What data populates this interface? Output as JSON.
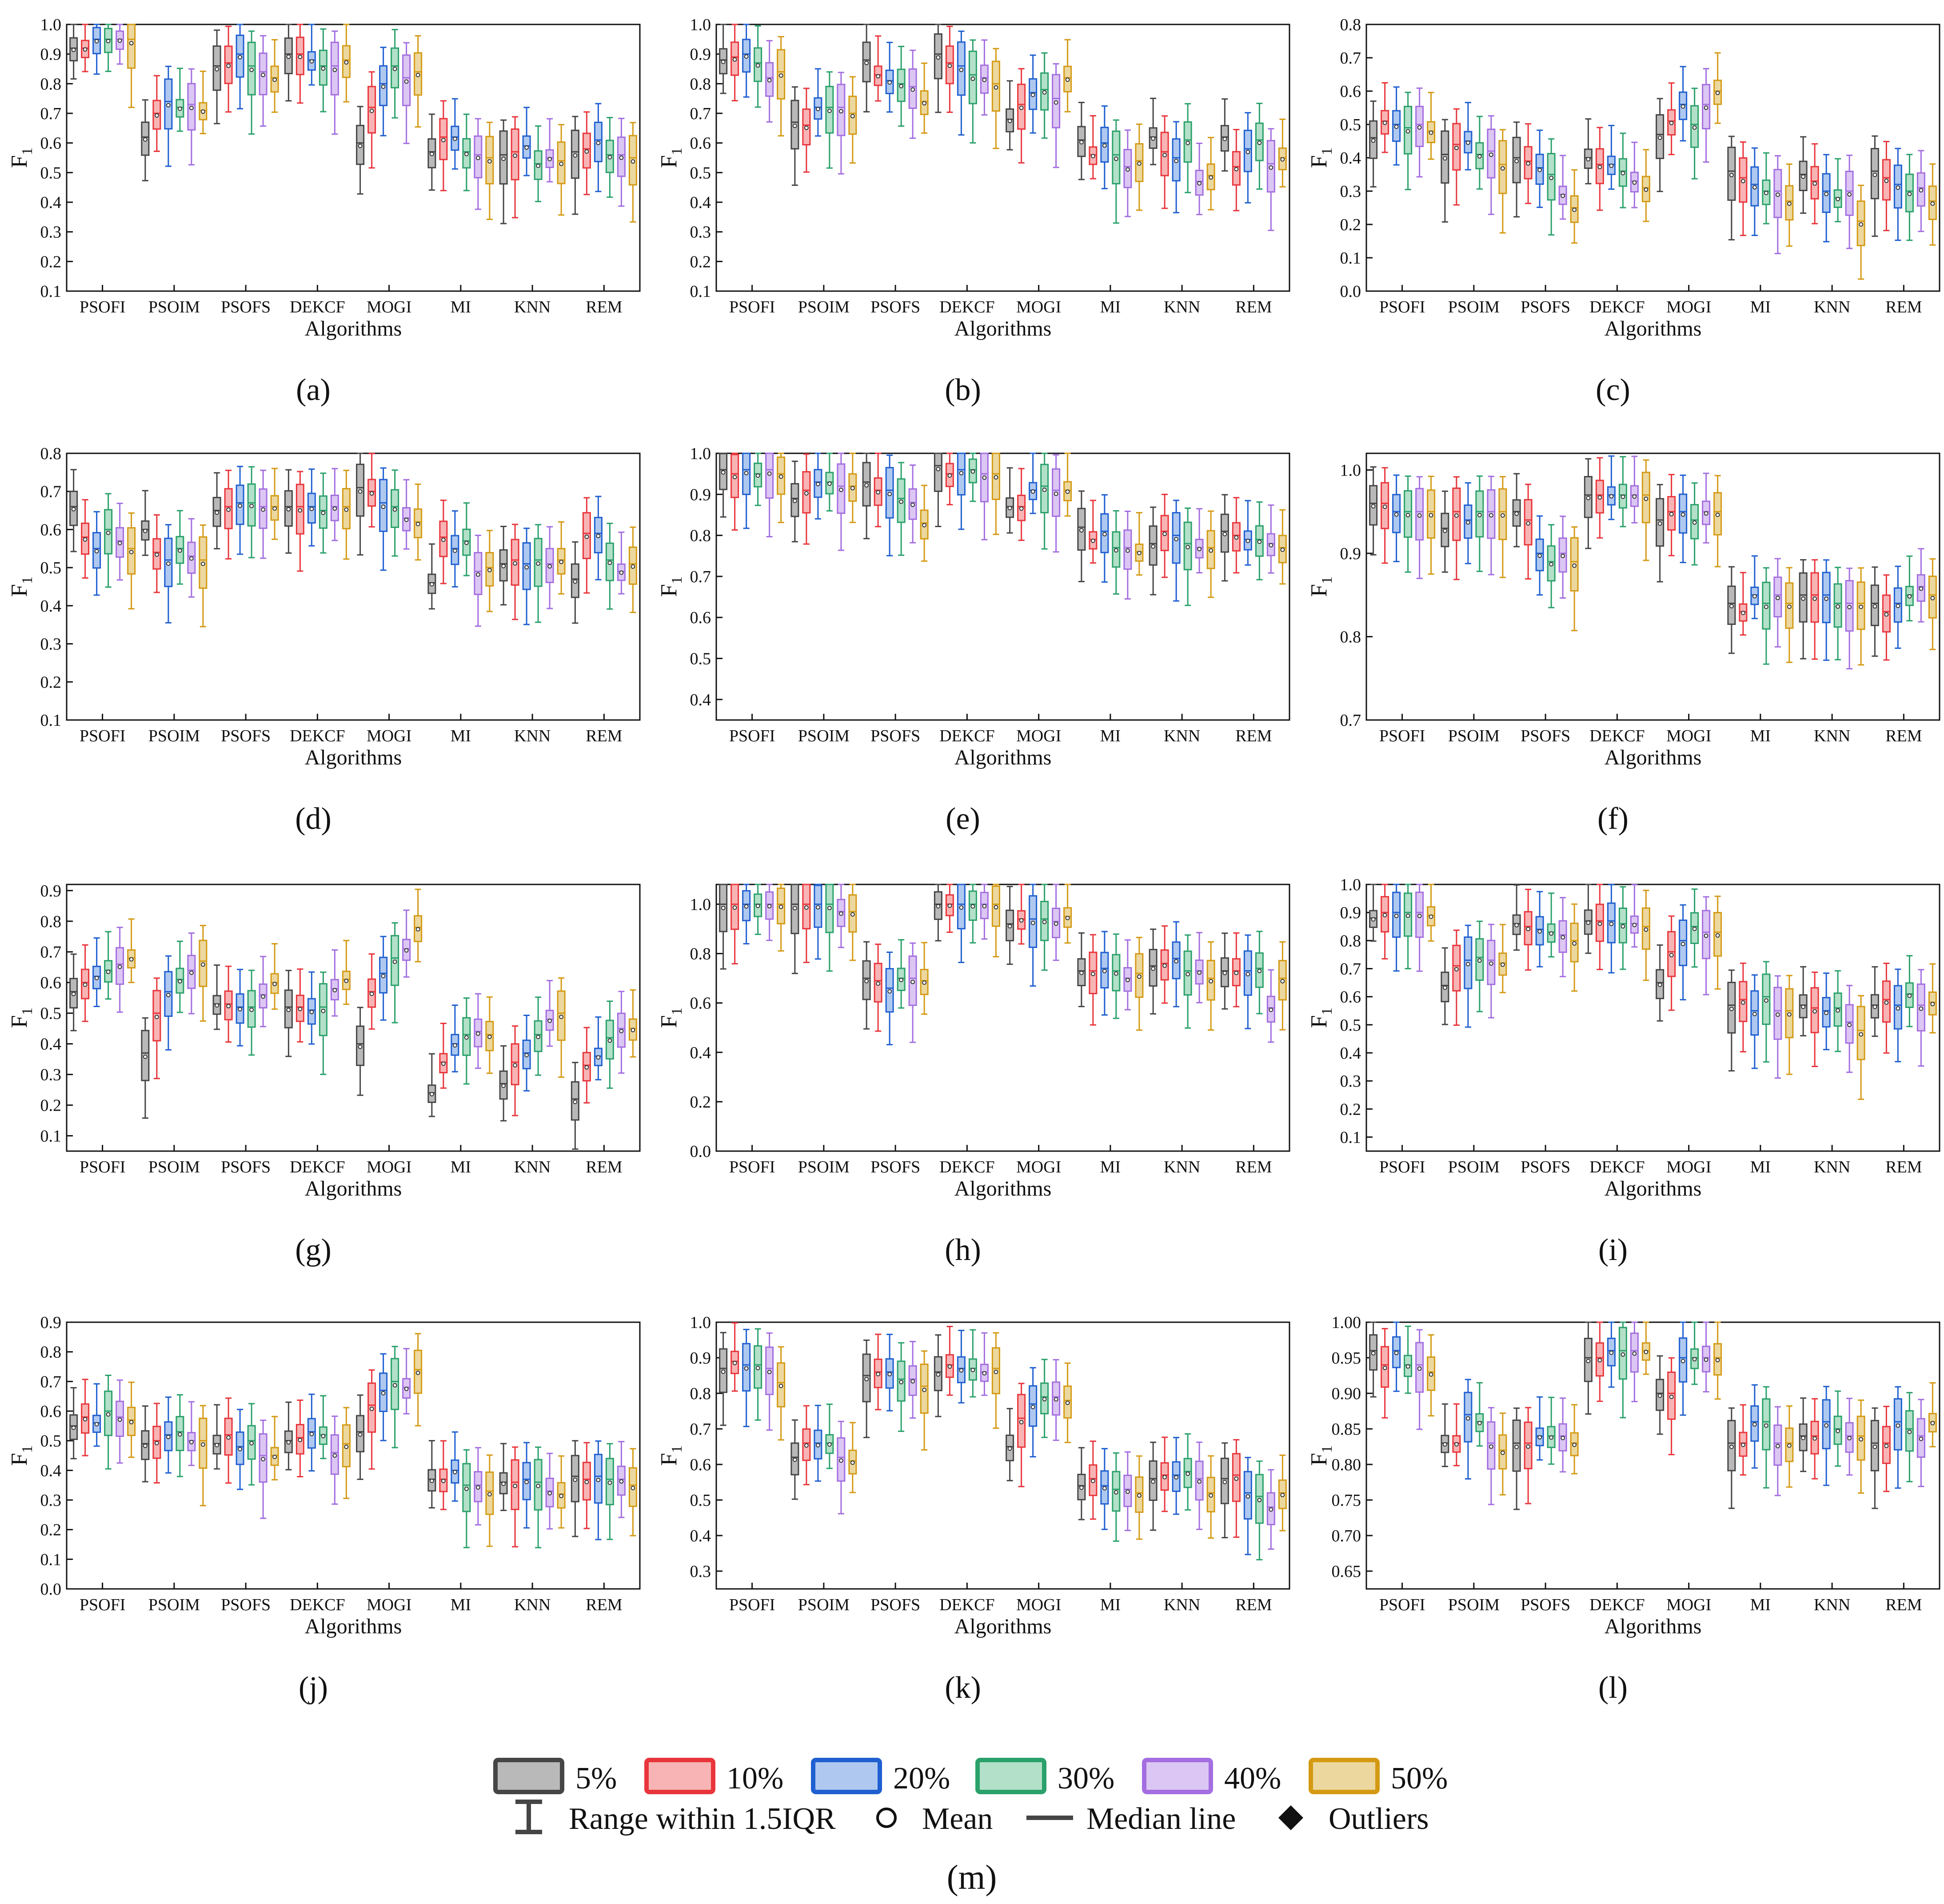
{
  "figure": {
    "ylabel_main": "F",
    "ylabel_sub": "1",
    "xlabel": "Algorithms"
  },
  "colors": {
    "stroke": [
      "#454545",
      "#e8353b",
      "#1f5fd0",
      "#2aa16a",
      "#a36ee0",
      "#d49a14"
    ],
    "fill": [
      "#b9b9b9",
      "#f8b4b4",
      "#aec8f0",
      "#b3e0c8",
      "#dcc6f3",
      "#ecd89e"
    ]
  },
  "legend": {
    "series": [
      "5%",
      "10%",
      "20%",
      "30%",
      "40%",
      "50%"
    ],
    "range_label": "Range within 1.5IQR",
    "mean_label": "Mean",
    "median_label": "Median line",
    "outliers_label": "Outliers",
    "panel_label": "(m)"
  },
  "chart_data": [
    {
      "panel": "(a)",
      "type": "box",
      "ylim": [
        0.1,
        1.0
      ],
      "yticks": [
        "0.1",
        "0.2",
        "0.3",
        "0.4",
        "0.5",
        "0.6",
        "0.7",
        "0.8",
        "0.9",
        "1.0"
      ],
      "categories": [
        "PSOFI",
        "PSOIM",
        "PSOFS",
        "DEKCF",
        "MOGI",
        "MI",
        "KNN",
        "REM"
      ],
      "medians": [
        [
          0.92,
          0.92,
          0.95,
          0.95,
          0.95,
          0.95
        ],
        [
          0.62,
          0.7,
          0.74,
          0.72,
          0.73,
          0.71
        ],
        [
          0.86,
          0.87,
          0.9,
          0.86,
          0.84,
          0.82
        ],
        [
          0.9,
          0.9,
          0.88,
          0.86,
          0.86,
          0.88
        ],
        [
          0.6,
          0.72,
          0.8,
          0.86,
          0.82,
          0.84
        ],
        [
          0.57,
          0.62,
          0.62,
          0.57,
          0.56,
          0.55
        ],
        [
          0.56,
          0.57,
          0.59,
          0.53,
          0.55,
          0.54
        ],
        [
          0.57,
          0.58,
          0.61,
          0.56,
          0.56,
          0.55
        ]
      ]
    },
    {
      "panel": "(b)",
      "type": "box",
      "ylim": [
        0.1,
        1.0
      ],
      "yticks": [
        "0.1",
        "0.2",
        "0.3",
        "0.4",
        "0.5",
        "0.6",
        "0.7",
        "0.8",
        "0.9",
        "1.0"
      ],
      "categories": [
        "PSOFI",
        "PSOIM",
        "PSOFS",
        "DEKCF",
        "MOGI",
        "MI",
        "KNN",
        "REM"
      ],
      "medians": [
        [
          0.88,
          0.89,
          0.9,
          0.87,
          0.82,
          0.84
        ],
        [
          0.67,
          0.66,
          0.72,
          0.72,
          0.72,
          0.7
        ],
        [
          0.88,
          0.83,
          0.81,
          0.8,
          0.79,
          0.74
        ],
        [
          0.9,
          0.87,
          0.86,
          0.83,
          0.82,
          0.8
        ],
        [
          0.68,
          0.73,
          0.77,
          0.78,
          0.75,
          0.82
        ],
        [
          0.61,
          0.56,
          0.6,
          0.56,
          0.52,
          0.54
        ],
        [
          0.62,
          0.57,
          0.55,
          0.61,
          0.47,
          0.49
        ],
        [
          0.62,
          0.52,
          0.58,
          0.61,
          0.53,
          0.55
        ]
      ]
    },
    {
      "panel": "(c)",
      "type": "box",
      "ylim": [
        0.0,
        0.8
      ],
      "yticks": [
        "0.0",
        "0.1",
        "0.2",
        "0.3",
        "0.4",
        "0.5",
        "0.6",
        "0.7",
        "0.8"
      ],
      "categories": [
        "PSOFI",
        "PSOIM",
        "PSOFS",
        "DEKCF",
        "MOGI",
        "MI",
        "KNN",
        "REM"
      ],
      "medians": [
        [
          0.46,
          0.51,
          0.5,
          0.49,
          0.5,
          0.48
        ],
        [
          0.41,
          0.44,
          0.45,
          0.41,
          0.42,
          0.38
        ],
        [
          0.4,
          0.39,
          0.37,
          0.35,
          0.29,
          0.25
        ],
        [
          0.4,
          0.38,
          0.38,
          0.36,
          0.33,
          0.31
        ],
        [
          0.47,
          0.51,
          0.56,
          0.5,
          0.56,
          0.6
        ],
        [
          0.36,
          0.34,
          0.32,
          0.3,
          0.3,
          0.27
        ],
        [
          0.35,
          0.33,
          0.3,
          0.28,
          0.3,
          0.21
        ],
        [
          0.36,
          0.34,
          0.32,
          0.3,
          0.31,
          0.27
        ]
      ]
    },
    {
      "panel": "(d)",
      "type": "box",
      "ylim": [
        0.1,
        0.8
      ],
      "yticks": [
        "0.1",
        "0.2",
        "0.3",
        "0.4",
        "0.5",
        "0.6",
        "0.7",
        "0.8"
      ],
      "categories": [
        "PSOFI",
        "PSOIM",
        "PSOFS",
        "DEKCF",
        "MOGI",
        "MI",
        "KNN",
        "REM"
      ],
      "medians": [
        [
          0.66,
          0.58,
          0.55,
          0.6,
          0.57,
          0.55
        ],
        [
          0.6,
          0.54,
          0.52,
          0.55,
          0.53,
          0.52
        ],
        [
          0.65,
          0.66,
          0.67,
          0.67,
          0.66,
          0.66
        ],
        [
          0.66,
          0.66,
          0.66,
          0.65,
          0.66,
          0.66
        ],
        [
          0.71,
          0.7,
          0.67,
          0.66,
          0.63,
          0.62
        ],
        [
          0.46,
          0.58,
          0.55,
          0.57,
          0.49,
          0.5
        ],
        [
          0.51,
          0.52,
          0.51,
          0.52,
          0.51,
          0.52
        ],
        [
          0.47,
          0.59,
          0.59,
          0.52,
          0.49,
          0.51
        ]
      ]
    },
    {
      "panel": "(e)",
      "type": "box",
      "ylim": [
        0.35,
        1.0
      ],
      "yticks": [
        "0.4",
        "0.5",
        "0.6",
        "0.7",
        "0.8",
        "0.9",
        "1.0"
      ],
      "categories": [
        "PSOFI",
        "PSOIM",
        "PSOFS",
        "DEKCF",
        "MOGI",
        "MI",
        "KNN",
        "REM"
      ],
      "medians": [
        [
          0.96,
          0.95,
          0.96,
          0.95,
          0.96,
          0.95
        ],
        [
          0.89,
          0.91,
          0.93,
          0.93,
          0.92,
          0.92
        ],
        [
          0.93,
          0.91,
          0.91,
          0.89,
          0.88,
          0.83
        ],
        [
          0.97,
          0.95,
          0.96,
          0.96,
          0.95,
          0.95
        ],
        [
          0.87,
          0.87,
          0.91,
          0.92,
          0.91,
          0.91
        ],
        [
          0.82,
          0.79,
          0.81,
          0.77,
          0.77,
          0.76
        ],
        [
          0.78,
          0.81,
          0.8,
          0.78,
          0.77,
          0.77
        ],
        [
          0.81,
          0.8,
          0.79,
          0.79,
          0.78,
          0.77
        ]
      ]
    },
    {
      "panel": "(f)",
      "type": "box",
      "ylim": [
        0.7,
        1.02
      ],
      "yticks": [
        "0.7",
        "0.8",
        "0.9",
        "1.0"
      ],
      "categories": [
        "PSOFI",
        "PSOIM",
        "PSOFS",
        "DEKCF",
        "MOGI",
        "MI",
        "KNN",
        "REM"
      ],
      "medians": [
        [
          0.96,
          0.96,
          0.95,
          0.95,
          0.95,
          0.95
        ],
        [
          0.93,
          0.95,
          0.94,
          0.95,
          0.95,
          0.95
        ],
        [
          0.95,
          0.94,
          0.9,
          0.89,
          0.9,
          0.89
        ],
        [
          0.97,
          0.97,
          0.97,
          0.97,
          0.97,
          0.97
        ],
        [
          0.94,
          0.95,
          0.95,
          0.94,
          0.95,
          0.95
        ],
        [
          0.84,
          0.83,
          0.85,
          0.84,
          0.85,
          0.84
        ],
        [
          0.85,
          0.85,
          0.85,
          0.84,
          0.84,
          0.84
        ],
        [
          0.84,
          0.83,
          0.84,
          0.85,
          0.86,
          0.85
        ]
      ]
    },
    {
      "panel": "(g)",
      "type": "box",
      "ylim": [
        0.05,
        0.92
      ],
      "yticks": [
        "0.1",
        "0.2",
        "0.3",
        "0.4",
        "0.5",
        "0.6",
        "0.7",
        "0.8",
        "0.9"
      ],
      "categories": [
        "PSOFI",
        "PSOIM",
        "PSOFS",
        "DEKCF",
        "MOGI",
        "MI",
        "KNN",
        "REM"
      ],
      "medians": [
        [
          0.57,
          0.6,
          0.62,
          0.64,
          0.66,
          0.68
        ],
        [
          0.37,
          0.5,
          0.57,
          0.61,
          0.64,
          0.67
        ],
        [
          0.53,
          0.53,
          0.52,
          0.52,
          0.56,
          0.6
        ],
        [
          0.52,
          0.52,
          0.51,
          0.52,
          0.58,
          0.61
        ],
        [
          0.4,
          0.57,
          0.63,
          0.68,
          0.71,
          0.78
        ],
        [
          0.24,
          0.34,
          0.4,
          0.43,
          0.44,
          0.43
        ],
        [
          0.27,
          0.34,
          0.37,
          0.43,
          0.48,
          0.5
        ],
        [
          0.22,
          0.33,
          0.36,
          0.42,
          0.45,
          0.45
        ]
      ]
    },
    {
      "panel": "(h)",
      "type": "box",
      "ylim": [
        0.0,
        1.08
      ],
      "yticks": [
        "0.0",
        "0.2",
        "0.4",
        "0.6",
        "0.8",
        "1.0"
      ],
      "categories": [
        "PSOFI",
        "PSOIM",
        "PSOFS",
        "DEKCF",
        "MOGI",
        "MI",
        "KNN",
        "REM"
      ],
      "medians": [
        [
          1.0,
          1.0,
          1.0,
          1.0,
          1.0,
          1.0
        ],
        [
          1.0,
          1.0,
          1.0,
          1.0,
          0.97,
          0.97
        ],
        [
          0.7,
          0.69,
          0.66,
          0.7,
          0.7,
          0.69
        ],
        [
          1.0,
          1.0,
          1.0,
          1.0,
          1.0,
          1.0
        ],
        [
          0.92,
          0.94,
          0.94,
          0.94,
          0.93,
          0.95
        ],
        [
          0.73,
          0.73,
          0.74,
          0.73,
          0.7,
          0.72
        ],
        [
          0.75,
          0.76,
          0.78,
          0.73,
          0.73,
          0.7
        ],
        [
          0.73,
          0.73,
          0.73,
          0.74,
          0.58,
          0.7
        ]
      ]
    },
    {
      "panel": "(i)",
      "type": "box",
      "ylim": [
        0.05,
        1.0
      ],
      "yticks": [
        "0.1",
        "0.2",
        "0.3",
        "0.4",
        "0.5",
        "0.6",
        "0.7",
        "0.8",
        "0.9",
        "1.0"
      ],
      "categories": [
        "PSOFI",
        "PSOIM",
        "PSOFS",
        "DEKCF",
        "MOGI",
        "MI",
        "KNN",
        "REM"
      ],
      "medians": [
        [
          0.88,
          0.9,
          0.9,
          0.9,
          0.9,
          0.89
        ],
        [
          0.64,
          0.71,
          0.73,
          0.74,
          0.73,
          0.72
        ],
        [
          0.86,
          0.85,
          0.84,
          0.83,
          0.82,
          0.8
        ],
        [
          0.87,
          0.87,
          0.87,
          0.86,
          0.86,
          0.85
        ],
        [
          0.65,
          0.76,
          0.8,
          0.85,
          0.83,
          0.83
        ],
        [
          0.57,
          0.59,
          0.55,
          0.6,
          0.55,
          0.55
        ],
        [
          0.57,
          0.56,
          0.55,
          0.56,
          0.51,
          0.48
        ],
        [
          0.57,
          0.59,
          0.57,
          0.61,
          0.57,
          0.58
        ]
      ]
    },
    {
      "panel": "(j)",
      "type": "box",
      "ylim": [
        0.0,
        0.9
      ],
      "yticks": [
        "0.0",
        "0.1",
        "0.2",
        "0.3",
        "0.4",
        "0.5",
        "0.6",
        "0.7",
        "0.8",
        "0.9"
      ],
      "categories": [
        "PSOFI",
        "PSOIM",
        "PSOFS",
        "DEKCF",
        "MOGI",
        "MI",
        "KNN",
        "REM"
      ],
      "medians": [
        [
          0.55,
          0.58,
          0.56,
          0.6,
          0.58,
          0.57
        ],
        [
          0.49,
          0.5,
          0.52,
          0.53,
          0.5,
          0.5
        ],
        [
          0.49,
          0.52,
          0.48,
          0.5,
          0.45,
          0.45
        ],
        [
          0.5,
          0.51,
          0.53,
          0.52,
          0.46,
          0.49
        ],
        [
          0.53,
          0.62,
          0.67,
          0.7,
          0.68,
          0.74
        ],
        [
          0.37,
          0.37,
          0.4,
          0.35,
          0.35,
          0.33
        ],
        [
          0.36,
          0.36,
          0.37,
          0.36,
          0.33,
          0.32
        ],
        [
          0.38,
          0.37,
          0.38,
          0.37,
          0.37,
          0.35
        ]
      ]
    },
    {
      "panel": "(k)",
      "type": "box",
      "ylim": [
        0.25,
        1.0
      ],
      "yticks": [
        "0.3",
        "0.4",
        "0.5",
        "0.6",
        "0.7",
        "0.8",
        "0.9",
        "1.0"
      ],
      "categories": [
        "PSOFI",
        "PSOIM",
        "PSOFS",
        "DEKCF",
        "MOGI",
        "MI",
        "KNN",
        "REM"
      ],
      "medians": [
        [
          0.87,
          0.89,
          0.88,
          0.88,
          0.87,
          0.83
        ],
        [
          0.62,
          0.66,
          0.66,
          0.66,
          0.62,
          0.61
        ],
        [
          0.85,
          0.86,
          0.86,
          0.84,
          0.84,
          0.82
        ],
        [
          0.86,
          0.88,
          0.87,
          0.87,
          0.86,
          0.87
        ],
        [
          0.65,
          0.73,
          0.77,
          0.79,
          0.79,
          0.78
        ],
        [
          0.54,
          0.56,
          0.54,
          0.53,
          0.53,
          0.52
        ],
        [
          0.56,
          0.57,
          0.57,
          0.58,
          0.56,
          0.52
        ],
        [
          0.56,
          0.57,
          0.52,
          0.51,
          0.48,
          0.52
        ]
      ]
    },
    {
      "panel": "(l)",
      "type": "box",
      "ylim": [
        0.625,
        1.0
      ],
      "yticks": [
        "0.65",
        "0.70",
        "0.75",
        "0.80",
        "0.85",
        "0.90",
        "0.95",
        "1.00"
      ],
      "categories": [
        "PSOFI",
        "PSOIM",
        "PSOFS",
        "DEKCF",
        "MOGI",
        "MI",
        "KNN",
        "REM"
      ],
      "medians": [
        [
          0.96,
          0.94,
          0.96,
          0.94,
          0.94,
          0.93
        ],
        [
          0.83,
          0.83,
          0.87,
          0.86,
          0.83,
          0.82
        ],
        [
          0.83,
          0.83,
          0.84,
          0.84,
          0.84,
          0.83
        ],
        [
          0.95,
          0.95,
          0.96,
          0.96,
          0.96,
          0.96
        ],
        [
          0.9,
          0.9,
          0.95,
          0.95,
          0.95,
          0.95
        ],
        [
          0.83,
          0.83,
          0.86,
          0.86,
          0.83,
          0.83
        ],
        [
          0.84,
          0.84,
          0.86,
          0.85,
          0.84,
          0.84
        ],
        [
          0.83,
          0.83,
          0.86,
          0.85,
          0.84,
          0.86
        ]
      ]
    }
  ]
}
